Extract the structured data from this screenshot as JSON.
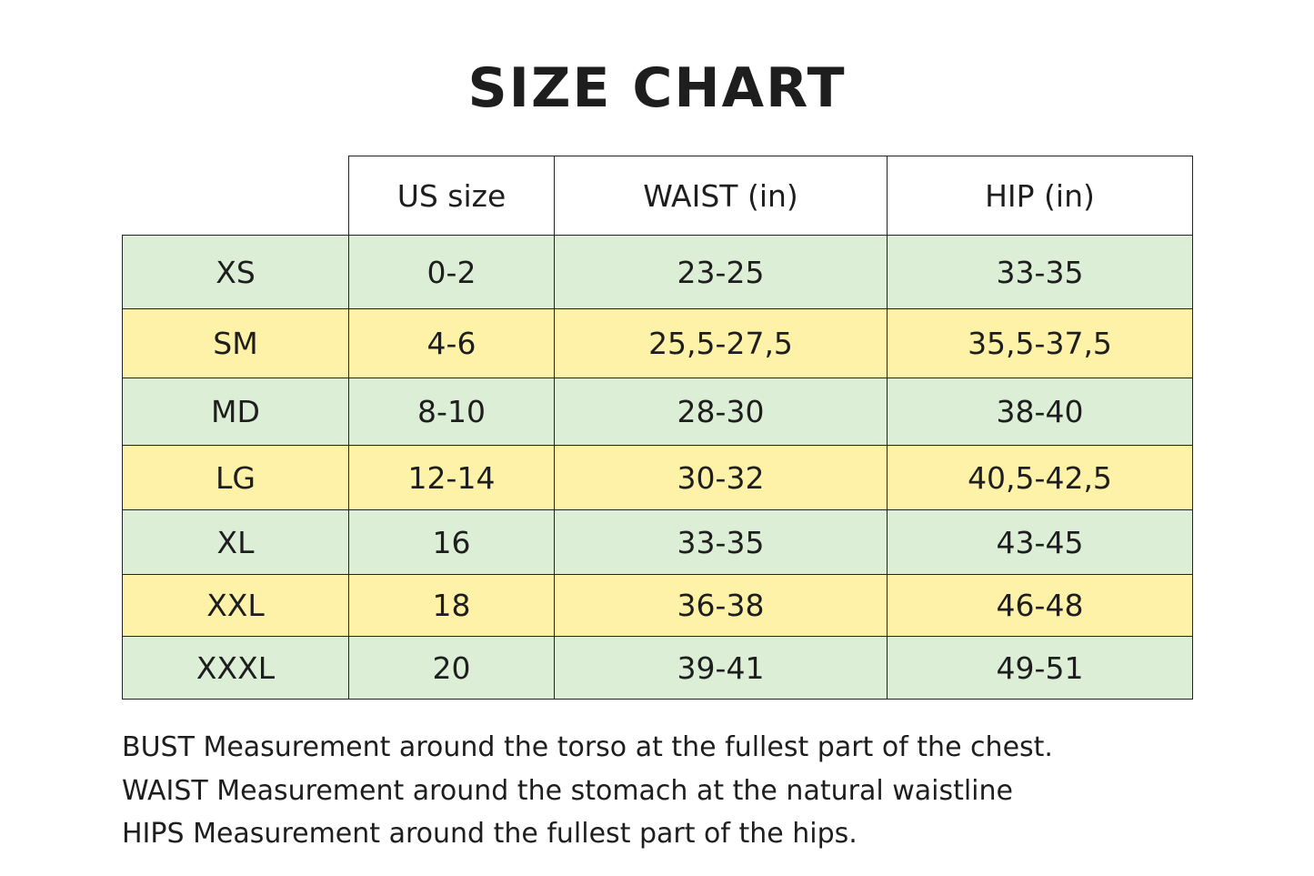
{
  "title": "SIZE CHART",
  "colors": {
    "green_row": "#dcefd6",
    "yellow_row": "#fdf2a8",
    "border": "#222222"
  },
  "table": {
    "headers": [
      "",
      "US size",
      "WAIST (in)",
      "HIP (in)"
    ],
    "rows": [
      [
        "XS",
        "0-2",
        "23-25",
        "33-35"
      ],
      [
        "SM",
        "4-6",
        "25,5-27,5",
        "35,5-37,5"
      ],
      [
        "MD",
        "8-10",
        "28-30",
        "38-40"
      ],
      [
        "LG",
        "12-14",
        "30-32",
        "40,5-42,5"
      ],
      [
        "XL",
        "16",
        "33-35",
        "43-45"
      ],
      [
        "XXL",
        "18",
        "36-38",
        "46-48"
      ],
      [
        "XXXL",
        "20",
        "39-41",
        "49-51"
      ]
    ]
  },
  "notes": [
    "BUST Measurement around the torso at the fullest part of the chest.",
    "WAIST Measurement around the stomach at the natural waistline",
    "HIPS Measurement around the fullest part of the hips."
  ]
}
